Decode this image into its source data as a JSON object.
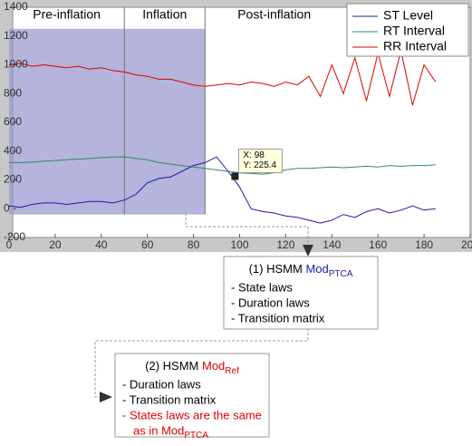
{
  "chart_data": {
    "type": "line",
    "x": [
      0,
      5,
      10,
      15,
      20,
      25,
      30,
      35,
      40,
      45,
      50,
      55,
      60,
      65,
      70,
      75,
      80,
      85,
      90,
      95,
      100,
      105,
      110,
      115,
      120,
      125,
      130,
      135,
      140,
      145,
      150,
      155,
      160,
      165,
      170,
      175,
      180,
      185
    ],
    "series": [
      {
        "name": "ST Level",
        "color": "#1c1ca0",
        "values": [
          20,
          10,
          30,
          40,
          40,
          30,
          40,
          50,
          50,
          40,
          60,
          100,
          180,
          210,
          220,
          260,
          300,
          320,
          360,
          260,
          150,
          0,
          -20,
          -30,
          -50,
          -60,
          -80,
          -100,
          -80,
          -40,
          -60,
          -20,
          0,
          -30,
          -10,
          20,
          -10,
          0
        ]
      },
      {
        "name": "RT Interval",
        "color": "#2e8b6a",
        "values": [
          320,
          320,
          325,
          330,
          335,
          340,
          345,
          350,
          355,
          360,
          360,
          350,
          340,
          320,
          310,
          300,
          290,
          280,
          270,
          260,
          250,
          245,
          240,
          250,
          270,
          280,
          280,
          285,
          290,
          285,
          290,
          295,
          290,
          300,
          295,
          300,
          300,
          305
        ]
      },
      {
        "name": "RR Interval",
        "color": "#e00000",
        "values": [
          1000,
          1010,
          990,
          1000,
          990,
          980,
          990,
          970,
          980,
          960,
          950,
          930,
          920,
          900,
          900,
          880,
          860,
          850,
          860,
          870,
          860,
          880,
          870,
          850,
          880,
          860,
          920,
          780,
          1000,
          800,
          1050,
          750,
          1080,
          780,
          1100,
          720,
          1000,
          880
        ]
      }
    ],
    "xlim": [
      0,
      200
    ],
    "xticks": [
      0,
      20,
      40,
      60,
      80,
      100,
      120,
      140,
      160,
      180,
      200
    ],
    "ylim": [
      -200,
      1400
    ],
    "yticks": [
      -200,
      0,
      200,
      400,
      600,
      800,
      1000,
      1200,
      1400
    ],
    "legend": "upper right",
    "regions": [
      {
        "label": "Pre-inflation",
        "from": 0,
        "to": 50
      },
      {
        "label": "Inflation",
        "from": 50,
        "to": 85
      },
      {
        "label": "Post-inflation",
        "from": 85,
        "to": 145
      }
    ],
    "shaded": {
      "xlim": [
        0,
        85
      ],
      "ylim": [
        -40,
        1250
      ],
      "color": "#9b9bd0"
    },
    "datatip": {
      "x": 98,
      "y": 225.4,
      "value_labels": [
        "X: 98",
        "Y: 225.4"
      ]
    }
  },
  "boxes": [
    {
      "title": "(1) HSMM Mod",
      "title_sub": "PTCA",
      "title_color": "#1c1ca0",
      "items": [
        "- State laws",
        "- Duration laws",
        "- Transition matrix"
      ]
    },
    {
      "title": "(2) HSMM Mod",
      "title_sub": "Ref",
      "title_color": "#e00000",
      "items": [
        "- Duration laws",
        "- Transition matrix"
      ],
      "note": [
        "- States laws are the same",
        "as in Mod"
      ],
      "note_sub": "PTCA",
      "note_color": "#e00000"
    }
  ]
}
